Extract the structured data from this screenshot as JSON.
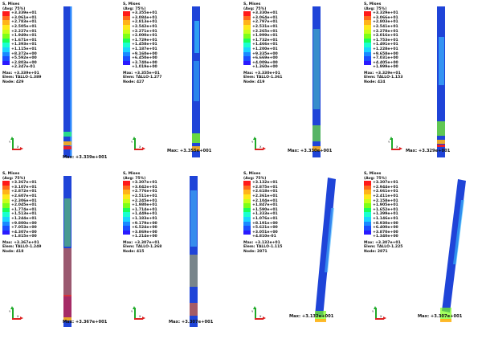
{
  "figure": {
    "panels": [
      {
        "id": "p1",
        "title": "S, Mises",
        "avg": "(Avg: 75%)",
        "scale": [
          "+3.339e+01",
          "+3.061e+01",
          "+2.783e+01",
          "+2.505e+01",
          "+2.227e+01",
          "+1.949e+01",
          "+1.671e+01",
          "+1.393e+01",
          "+1.115e+01",
          "+8.372e+00",
          "+5.592e+00",
          "+2.803e+00",
          "+2.347e-01"
        ],
        "info_lines": [
          "Max: +3.339e+01",
          "Elem: TALLO-1.389",
          "Node: 429"
        ],
        "bottom_label": "Max: +3.339e+001",
        "colors": {
          "body": "#1f44d8",
          "accent": "#2f8dff"
        }
      },
      {
        "id": "p2",
        "title": "S, Mises",
        "avg": "(Avg: 75%)",
        "scale": [
          "+3.355e+01",
          "+3.084e+01",
          "+2.813e+01",
          "+2.542e+01",
          "+2.271e+01",
          "+2.000e+01",
          "+1.729e+01",
          "+1.458e+01",
          "+1.187e+01",
          "+9.160e+00",
          "+6.450e+00",
          "+3.740e+00",
          "+1.019e+00"
        ],
        "info_lines": [
          "Max: +3.355e+01",
          "Elem: TALLO-1.277",
          "Node: 427"
        ],
        "bottom_label": "Max: +3.355e+001",
        "colors": {
          "body": "#1f44d8",
          "accent": "#33c4ff"
        }
      },
      {
        "id": "p3",
        "title": "S, Mises",
        "avg": "(Avg: 75%)",
        "scale": [
          "+3.330e+01",
          "+3.064e+01",
          "+2.797e+01",
          "+2.531e+01",
          "+2.265e+01",
          "+1.999e+01",
          "+1.732e+01",
          "+1.466e+01",
          "+1.200e+01",
          "+9.335e+00",
          "+6.669e+00",
          "+4.009e+00",
          "+1.360e+00"
        ],
        "info_lines": [
          "Max: +3.330e+01",
          "Elem: TALLO-1.361",
          "Node: 419"
        ],
        "bottom_label": "Max: +3.330e+001",
        "colors": {
          "body": "#1f44d8",
          "accent": "#4fd6c0"
        }
      },
      {
        "id": "p4",
        "title": "S, Mises",
        "avg": "(Avg: 75%)",
        "scale": [
          "+3.329e+01",
          "+3.066e+01",
          "+2.803e+01",
          "+2.541e+01",
          "+2.278e+01",
          "+2.016e+01",
          "+1.753e+01",
          "+1.491e+01",
          "+1.228e+01",
          "+9.658e+00",
          "+7.031e+00",
          "+4.405e+00",
          "+1.999e+00"
        ],
        "info_lines": [
          "Max: +3.329e+01",
          "Elem: TALLO-1.153",
          "Node: 424"
        ],
        "bottom_label": "Max: +3.329e+001",
        "colors": {
          "body": "#1f44d8",
          "accent": "#3fb6ff"
        }
      },
      {
        "id": "p5",
        "title": "S, Mises",
        "avg": "(Avg: 75%)",
        "scale": [
          "+3.367e+01",
          "+3.107e+01",
          "+2.872e+01",
          "+2.607e+01",
          "+2.306e+01",
          "+2.045e+01",
          "+1.774e+01",
          "+1.513e+01",
          "+1.244e+01",
          "+9.800e+00",
          "+7.053e+00",
          "+4.307e+00",
          "+1.815e+00"
        ],
        "info_lines": [
          "Max: +3.367e+01",
          "Elem: TALLO-1.249",
          "Node: 418"
        ],
        "bottom_label": "Max: +3.367e+001",
        "colors": {
          "body": "#1f44d8",
          "accent": "#69e05a"
        }
      },
      {
        "id": "p6",
        "title": "S, Mises",
        "avg": "(Avg: 75%)",
        "scale": [
          "+3.307e+01",
          "+3.042e+01",
          "+2.776e+01",
          "+2.511e+01",
          "+2.245e+01",
          "+1.980e+01",
          "+1.714e+01",
          "+1.449e+01",
          "+1.183e+01",
          "+9.179e+00",
          "+6.524e+00",
          "+3.869e+00",
          "+1.214e+00"
        ],
        "info_lines": [
          "Max: +3.307e+01",
          "Elem: TALLO-1.268",
          "Node: 415"
        ],
        "bottom_label": "Max: +3.307e+001",
        "colors": {
          "body": "#1f44d8",
          "accent": "#48c8ff"
        }
      },
      {
        "id": "p7",
        "title": "S, Mises",
        "avg": "(Avg: 75%)",
        "scale": [
          "+3.132e+01",
          "+2.875e+01",
          "+2.618e+01",
          "+2.361e+01",
          "+2.104e+01",
          "+1.847e+01",
          "+1.590e+01",
          "+1.333e+01",
          "+1.076e+01",
          "+8.191e+00",
          "+5.621e+00",
          "+3.051e+00",
          "+4.810e-01"
        ],
        "info_lines": [
          "Max: +3.132e+01",
          "Elem: TALLO-1.115",
          "Node: 2871"
        ],
        "bottom_label": "Max: +3.132e+001",
        "colors": {
          "body": "#1f44d8",
          "accent": "#45b5ff"
        }
      },
      {
        "id": "p8",
        "title": "S, Mises",
        "avg": "(Avg: 75%)",
        "scale": [
          "+3.307e+01",
          "+2.944e+01",
          "+2.661e+01",
          "+2.411e+01",
          "+2.158e+01",
          "+1.905e+01",
          "+1.652e+01",
          "+1.399e+01",
          "+1.146e+01",
          "+8.930e+00",
          "+6.400e+00",
          "+3.870e+00",
          "+1.340e+00"
        ],
        "info_lines": [
          "Max: +3.307e+01",
          "Elem: TALLO-1.225",
          "Node: 2871"
        ],
        "bottom_label": "Max: +3.307e+001",
        "colors": {
          "body": "#1f44d8",
          "accent": "#3cc1ff"
        }
      }
    ]
  },
  "palette": [
    "#ff1a1a",
    "#ff6a1a",
    "#ffb31a",
    "#ffe81a",
    "#c8ff1a",
    "#7cff1a",
    "#1aff5a",
    "#1affd0",
    "#1ad4ff",
    "#1a8aff",
    "#1a4fff",
    "#2a1aff"
  ]
}
